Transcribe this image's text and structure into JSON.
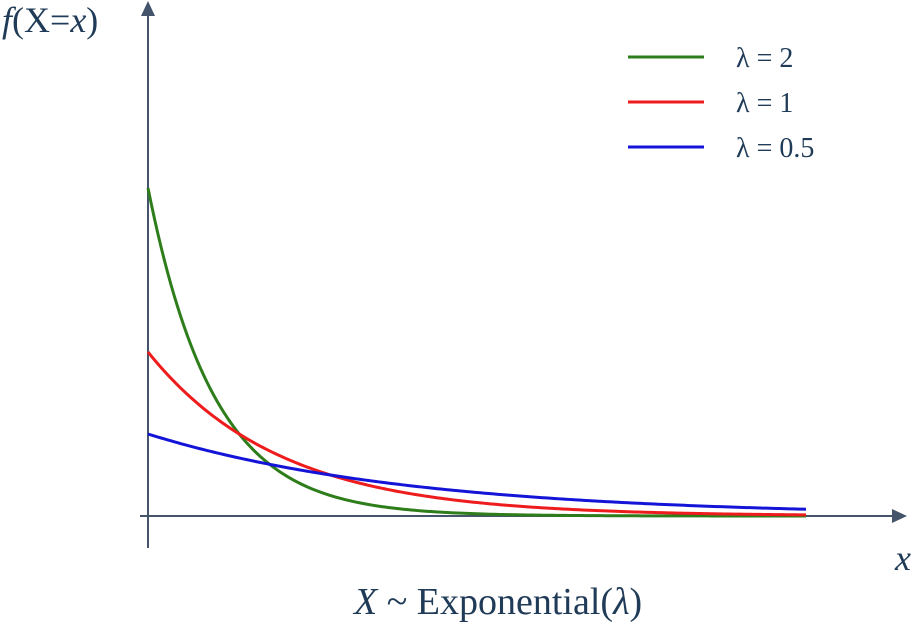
{
  "chart_data": {
    "type": "line",
    "title": "X ~ Exponential(λ)",
    "title_parts": {
      "var": "X",
      "rest": " ~ Exponential(",
      "lambda": "λ",
      "close": ")"
    },
    "ylabel_parts": {
      "f": "f",
      "open": "(X=",
      "x": "x",
      "close": ")"
    },
    "xlabel": "x",
    "xlim": [
      0,
      5
    ],
    "ylim": [
      0,
      2
    ],
    "grid": false,
    "legend_position": "top-right",
    "series": [
      {
        "name": "λ = 2",
        "lambda": 2,
        "color": "#2e7d1b"
      },
      {
        "name": "λ = 1",
        "lambda": 1,
        "color": "#ee1c1c"
      },
      {
        "name": "λ = 0.5",
        "lambda": 0.5,
        "color": "#1414d8"
      }
    ]
  },
  "colors": {
    "axis": "#44546a",
    "text": "#1f3b57"
  }
}
